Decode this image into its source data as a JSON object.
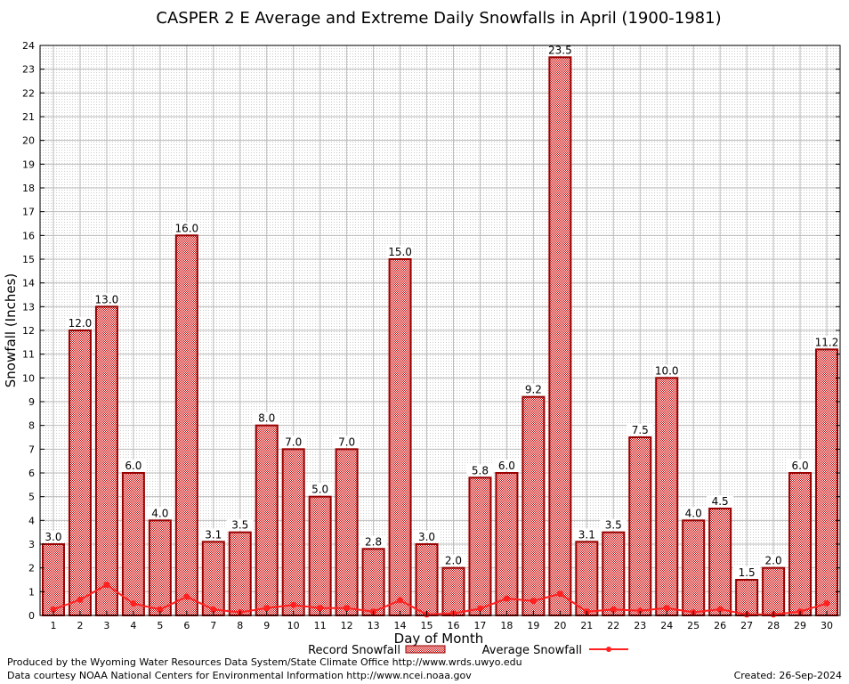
{
  "chart_data": {
    "type": "bar",
    "title": "CASPER 2 E Average and Extreme Daily Snowfalls in April (1900-1981)",
    "xlabel": "Day of Month",
    "ylabel": "Snowfall (Inches)",
    "ylim": [
      0,
      24
    ],
    "yticks": [
      0,
      1,
      2,
      3,
      4,
      5,
      6,
      7,
      8,
      9,
      10,
      11,
      12,
      13,
      14,
      15,
      16,
      17,
      18,
      19,
      20,
      21,
      22,
      23,
      24
    ],
    "categories": [
      "1",
      "2",
      "3",
      "4",
      "5",
      "6",
      "7",
      "8",
      "9",
      "10",
      "11",
      "12",
      "13",
      "14",
      "15",
      "16",
      "17",
      "18",
      "19",
      "20",
      "21",
      "22",
      "23",
      "24",
      "25",
      "26",
      "27",
      "28",
      "29",
      "30"
    ],
    "grid": true,
    "legend_position": "bottom",
    "series": [
      {
        "name": "Record Snowfall",
        "type": "bar",
        "color": "#cc0000",
        "values": [
          3.0,
          12.0,
          13.0,
          6.0,
          4.0,
          16.0,
          3.1,
          3.5,
          8.0,
          7.0,
          5.0,
          7.0,
          2.8,
          15.0,
          3.0,
          2.0,
          5.8,
          6.0,
          9.2,
          23.5,
          3.1,
          3.5,
          7.5,
          10.0,
          4.0,
          4.5,
          1.5,
          2.0,
          6.0,
          11.2
        ],
        "labels": [
          "3.0",
          "12.0",
          "13.0",
          "6.0",
          "4.0",
          "16.0",
          "3.1",
          "3.5",
          "8.0",
          "7.0",
          "5.0",
          "7.0",
          "2.8",
          "15.0",
          "3.0",
          "2.0",
          "5.8",
          "6.0",
          "9.2",
          "23.5",
          "3.1",
          "3.5",
          "7.5",
          "10.0",
          "4.0",
          "4.5",
          "1.5",
          "2.0",
          "6.0",
          "11.2"
        ]
      },
      {
        "name": "Average Snowfall",
        "type": "line",
        "color": "#ff2020",
        "values": [
          0.25,
          0.66,
          1.29,
          0.5,
          0.25,
          0.79,
          0.25,
          0.13,
          0.31,
          0.44,
          0.31,
          0.31,
          0.16,
          0.64,
          0.04,
          0.08,
          0.29,
          0.71,
          0.61,
          0.91,
          0.16,
          0.25,
          0.2,
          0.31,
          0.13,
          0.26,
          0.04,
          0.04,
          0.16,
          0.51
        ]
      }
    ]
  },
  "footer": {
    "line1": "Produced by the Wyoming Water Resources Data System/State Climate Office http://www.wrds.uwyo.edu",
    "line2": "Data courtesy NOAA National Centers for Environmental Information http://www.ncei.noaa.gov",
    "created": "Created:  26-Sep-2024"
  }
}
